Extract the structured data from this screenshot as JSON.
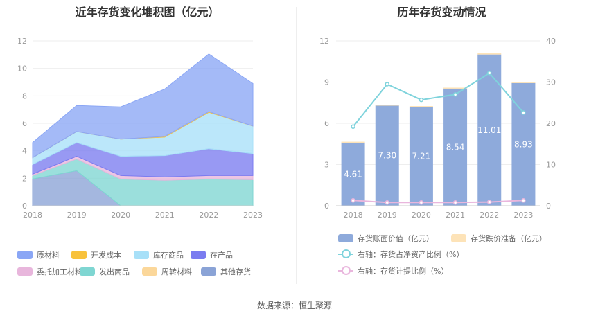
{
  "chart_data": [
    {
      "type": "area",
      "stacked": true,
      "title": "近年存货变化堆积图（亿元）",
      "categories": [
        "2018",
        "2019",
        "2020",
        "2021",
        "2022",
        "2023"
      ],
      "ylim": [
        0,
        12
      ],
      "yticks": [
        "0",
        "2",
        "4",
        "6",
        "8",
        "10",
        "12"
      ],
      "series": [
        {
          "name": "其他存货",
          "color": "#8aa3d6",
          "values": [
            1.95,
            2.55,
            0.0,
            0.0,
            0.0,
            0.0
          ]
        },
        {
          "name": "发出商品",
          "color": "#7fd6d2",
          "values": [
            0.25,
            0.85,
            1.95,
            1.85,
            1.95,
            1.9
          ]
        },
        {
          "name": "委托加工材料",
          "color": "#e8b6dc",
          "values": [
            0.1,
            0.2,
            0.25,
            0.25,
            0.25,
            0.3
          ]
        },
        {
          "name": "在产品",
          "color": "#7b7cf0",
          "values": [
            0.7,
            1.0,
            1.4,
            1.55,
            1.95,
            1.6
          ]
        },
        {
          "name": "库存商品",
          "color": "#a8e0f8",
          "values": [
            0.5,
            0.8,
            1.25,
            1.35,
            2.65,
            2.0
          ]
        },
        {
          "name": "开发成本",
          "color": "#f8c23c",
          "values": [
            0.0,
            0.0,
            0.0,
            0.05,
            0.05,
            0.0
          ]
        },
        {
          "name": "周转材料",
          "color": "#fbd79a",
          "values": [
            0.0,
            0.0,
            0.0,
            0.0,
            0.0,
            0.0
          ]
        },
        {
          "name": "原材料",
          "color": "#8aa6f5",
          "values": [
            1.1,
            1.9,
            2.35,
            3.45,
            4.2,
            3.1
          ]
        }
      ]
    },
    {
      "type": "bar",
      "title": "历年存货变动情况",
      "categories": [
        "2018",
        "2019",
        "2020",
        "2021",
        "2022",
        "2023"
      ],
      "ylim": [
        0,
        12
      ],
      "yticks": [
        "0",
        "3",
        "6",
        "9",
        "12"
      ],
      "y2lim": [
        0,
        40
      ],
      "y2ticks": [
        "0",
        "10",
        "20",
        "30",
        "40"
      ],
      "series": [
        {
          "name": "存货账面价值（亿元）",
          "color": "#8eaadb",
          "values": [
            4.61,
            7.3,
            7.21,
            8.54,
            11.01,
            8.93
          ],
          "labels": [
            "4.61",
            "7.30",
            "7.21",
            "8.54",
            "11.01",
            "8.93"
          ]
        },
        {
          "name": "存货跌价准备（亿元）",
          "color": "#fde3b8",
          "values": [
            0.05,
            0.06,
            0.05,
            0.06,
            0.1,
            0.08
          ]
        }
      ],
      "lines": [
        {
          "name": "右轴：存货占净资产比例（%）",
          "color": "#7fd3dc",
          "values": [
            19.2,
            29.5,
            25.7,
            27.0,
            32.2,
            22.6
          ]
        },
        {
          "name": "右轴：存货计提比例（%）",
          "color": "#e9b6dd",
          "values": [
            1.3,
            0.8,
            0.8,
            0.8,
            0.9,
            1.3
          ]
        }
      ]
    }
  ],
  "source": "数据来源：恒生聚源"
}
